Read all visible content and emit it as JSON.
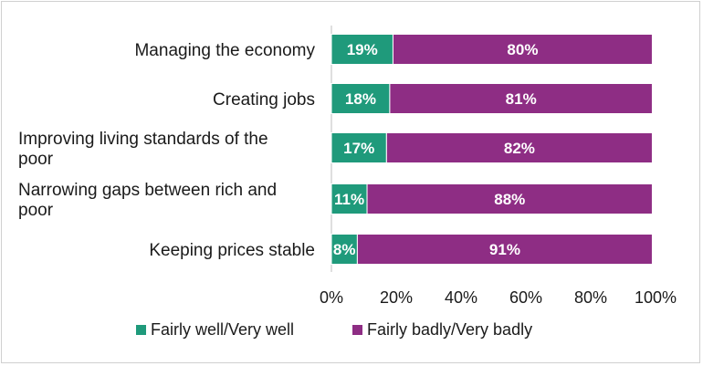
{
  "chart_data": {
    "type": "bar",
    "orientation": "horizontal",
    "stacked": true,
    "categories": [
      "Managing the economy",
      "Creating jobs",
      "Improving living standards of the poor",
      "Narrowing gaps between rich and poor",
      "Keeping prices stable"
    ],
    "category_lines": [
      [
        "Managing the economy"
      ],
      [
        "Creating jobs"
      ],
      [
        "Improving living standards of the",
        "poor"
      ],
      [
        "Narrowing gaps between rich and",
        "poor"
      ],
      [
        "Keeping prices stable"
      ]
    ],
    "series": [
      {
        "name": "Fairly well/Very well",
        "color": "#1f9a7b",
        "values": [
          19,
          18,
          17,
          11,
          8
        ],
        "labels": [
          "19%",
          "18%",
          "17%",
          "11%",
          "8%"
        ]
      },
      {
        "name": "Fairly badly/Very badly",
        "color": "#8e2d84",
        "values": [
          80,
          81,
          82,
          88,
          91
        ],
        "labels": [
          "80%",
          "81%",
          "82%",
          "88%",
          "91%"
        ]
      }
    ],
    "xlim": [
      0,
      100
    ],
    "xticks": [
      "0%",
      "20%",
      "40%",
      "60%",
      "80%",
      "100%"
    ],
    "grid": false,
    "legend_position": "bottom",
    "title": "",
    "xlabel": "",
    "ylabel": ""
  }
}
